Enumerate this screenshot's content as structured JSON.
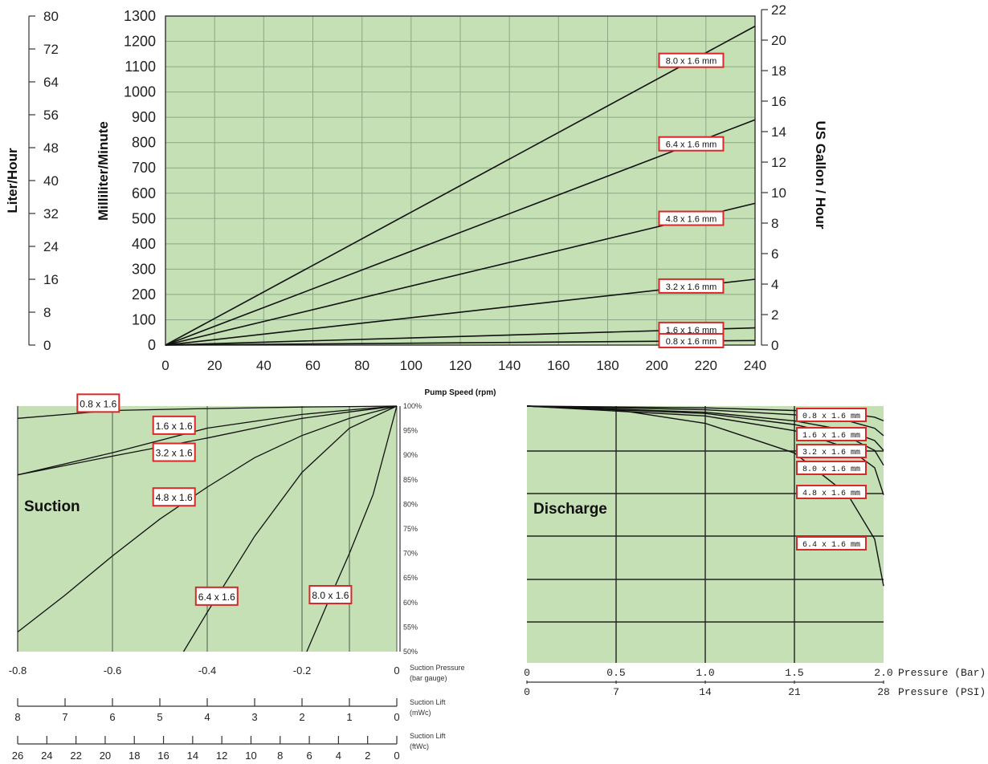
{
  "chart_data": [
    {
      "type": "line",
      "xlabel": "Pump Speed (rpm)",
      "ylabel": "Milliliter/Minute",
      "ylabel_left": "Liter/Hour",
      "ylabel_right": "US Gallon / Hour",
      "x_ticks": [
        "0",
        "20",
        "40",
        "60",
        "80",
        "100",
        "120",
        "140",
        "160",
        "180",
        "200",
        "220",
        "240"
      ],
      "y_ticks": [
        "0",
        "100",
        "200",
        "300",
        "400",
        "500",
        "600",
        "700",
        "800",
        "900",
        "1000",
        "1100",
        "1200",
        "1300"
      ],
      "y_left_ticks": [
        "0",
        "8",
        "16",
        "24",
        "32",
        "40",
        "48",
        "56",
        "64",
        "72",
        "80"
      ],
      "y_right_ticks": [
        "0",
        "2",
        "4",
        "6",
        "8",
        "10",
        "12",
        "14",
        "16",
        "18",
        "20",
        "22"
      ],
      "xlim": [
        0,
        240
      ],
      "ylim": [
        0,
        1300
      ],
      "grid": true,
      "series": [
        {
          "name": "8.0 x 1.6 mm",
          "x": [
            0,
            240
          ],
          "y": [
            0,
            1260
          ]
        },
        {
          "name": "6.4 x 1.6 mm",
          "x": [
            0,
            240
          ],
          "y": [
            0,
            890
          ]
        },
        {
          "name": "4.8 x 1.6 mm",
          "x": [
            0,
            240
          ],
          "y": [
            0,
            560
          ]
        },
        {
          "name": "3.2 x 1.6 mm",
          "x": [
            0,
            240
          ],
          "y": [
            0,
            260
          ]
        },
        {
          "name": "1.6 x 1.6 mm",
          "x": [
            0,
            240
          ],
          "y": [
            0,
            68
          ]
        },
        {
          "name": "0.8 x 1.6 mm",
          "x": [
            0,
            240
          ],
          "y": [
            0,
            18
          ]
        }
      ]
    },
    {
      "type": "line",
      "title": "Suction",
      "xlabel": "Suction Pressure (bar gauge)",
      "xlabel2": "Suction Lift (mWc)",
      "xlabel3": "Suction Lift (ftWc)",
      "x_ticks": [
        "-0.8",
        "-0.6",
        "-0.4",
        "-0.2",
        "0"
      ],
      "x2_ticks": [
        "8",
        "7",
        "6",
        "5",
        "4",
        "3",
        "2",
        "1",
        "0"
      ],
      "x3_ticks": [
        "26",
        "24",
        "22",
        "20",
        "18",
        "16",
        "14",
        "12",
        "10",
        "8",
        "6",
        "4",
        "2",
        "0"
      ],
      "y_ticks": [
        "100%",
        "95%",
        "90%",
        "85%",
        "80%",
        "75%",
        "70%",
        "65%",
        "60%",
        "55%",
        "50%"
      ],
      "xlim": [
        -0.8,
        0
      ],
      "ylim": [
        50,
        100
      ],
      "grid": true,
      "series": [
        {
          "name": "0.8 x 1.6",
          "x": [
            -0.8,
            -0.6,
            -0.4,
            -0.2,
            -0.1,
            0
          ],
          "y": [
            97.5,
            99.1,
            99.5,
            99.8,
            99.9,
            100
          ]
        },
        {
          "name": "1.6 x 1.6",
          "x": [
            -0.8,
            -0.6,
            -0.4,
            -0.2,
            -0.1,
            0
          ],
          "y": [
            86,
            90.5,
            95.5,
            98.3,
            99.2,
            100
          ]
        },
        {
          "name": "3.2 x 1.6",
          "x": [
            -0.8,
            -0.6,
            -0.4,
            -0.2,
            -0.1,
            0
          ],
          "y": [
            86,
            89.8,
            93.5,
            97.5,
            98.8,
            100
          ]
        },
        {
          "name": "4.8 x 1.6",
          "x": [
            -0.8,
            -0.7,
            -0.6,
            -0.5,
            -0.4,
            -0.3,
            -0.2,
            -0.1,
            0
          ],
          "y": [
            54,
            61.5,
            69.5,
            77,
            83.5,
            89.5,
            94,
            97.5,
            100
          ]
        },
        {
          "name": "6.4 x 1.6",
          "x": [
            -0.45,
            -0.4,
            -0.3,
            -0.2,
            -0.1,
            0
          ],
          "y": [
            50,
            58,
            73.5,
            86.5,
            95.5,
            100
          ]
        },
        {
          "name": "8.0 x 1.6",
          "x": [
            -0.19,
            -0.15,
            -0.1,
            -0.05,
            0
          ],
          "y": [
            50,
            59,
            70,
            82,
            100
          ]
        }
      ]
    },
    {
      "type": "line",
      "title": "Discharge",
      "xlabel": "Pressure (Bar)",
      "xlabel2": "Pressure (PSI)",
      "x_ticks": [
        "0",
        "0.5",
        "1.0",
        "1.5",
        "2.0"
      ],
      "x2_ticks": [
        "0",
        "7",
        "14",
        "21",
        "28"
      ],
      "xlim": [
        0,
        2.0
      ],
      "grid": true,
      "series": [
        {
          "name": "0.8 x 1.6 mm",
          "x": [
            0,
            1.0,
            1.5,
            1.8,
            1.95,
            2.0
          ],
          "y": [
            100,
            99.3,
            98.2,
            97,
            95.5,
            94
          ]
        },
        {
          "name": "1.6 x 1.6 mm",
          "x": [
            0,
            1.0,
            1.5,
            1.8,
            1.95,
            2.0
          ],
          "y": [
            100,
            98.5,
            96.5,
            94,
            91,
            88
          ]
        },
        {
          "name": "3.2 x 1.6 mm",
          "x": [
            0,
            1.0,
            1.5,
            1.8,
            1.95,
            2.0
          ],
          "y": [
            100,
            97.5,
            94,
            90,
            86,
            82
          ]
        },
        {
          "name": "8.0 x 1.6 mm",
          "x": [
            0,
            1.0,
            1.5,
            1.8,
            1.95,
            2.0
          ],
          "y": [
            100,
            97,
            92.5,
            87.5,
            82,
            76
          ]
        },
        {
          "name": "4.8 x 1.6 mm",
          "x": [
            0,
            1.0,
            1.5,
            1.8,
            1.95,
            2.0
          ],
          "y": [
            100,
            96,
            90,
            83,
            75,
            64
          ]
        },
        {
          "name": "6.4 x 1.6 mm",
          "x": [
            0,
            0.5,
            1.0,
            1.5,
            1.8,
            1.95,
            2.0
          ],
          "y": [
            100,
            98.5,
            93,
            81,
            64,
            46,
            27
          ]
        }
      ]
    }
  ]
}
